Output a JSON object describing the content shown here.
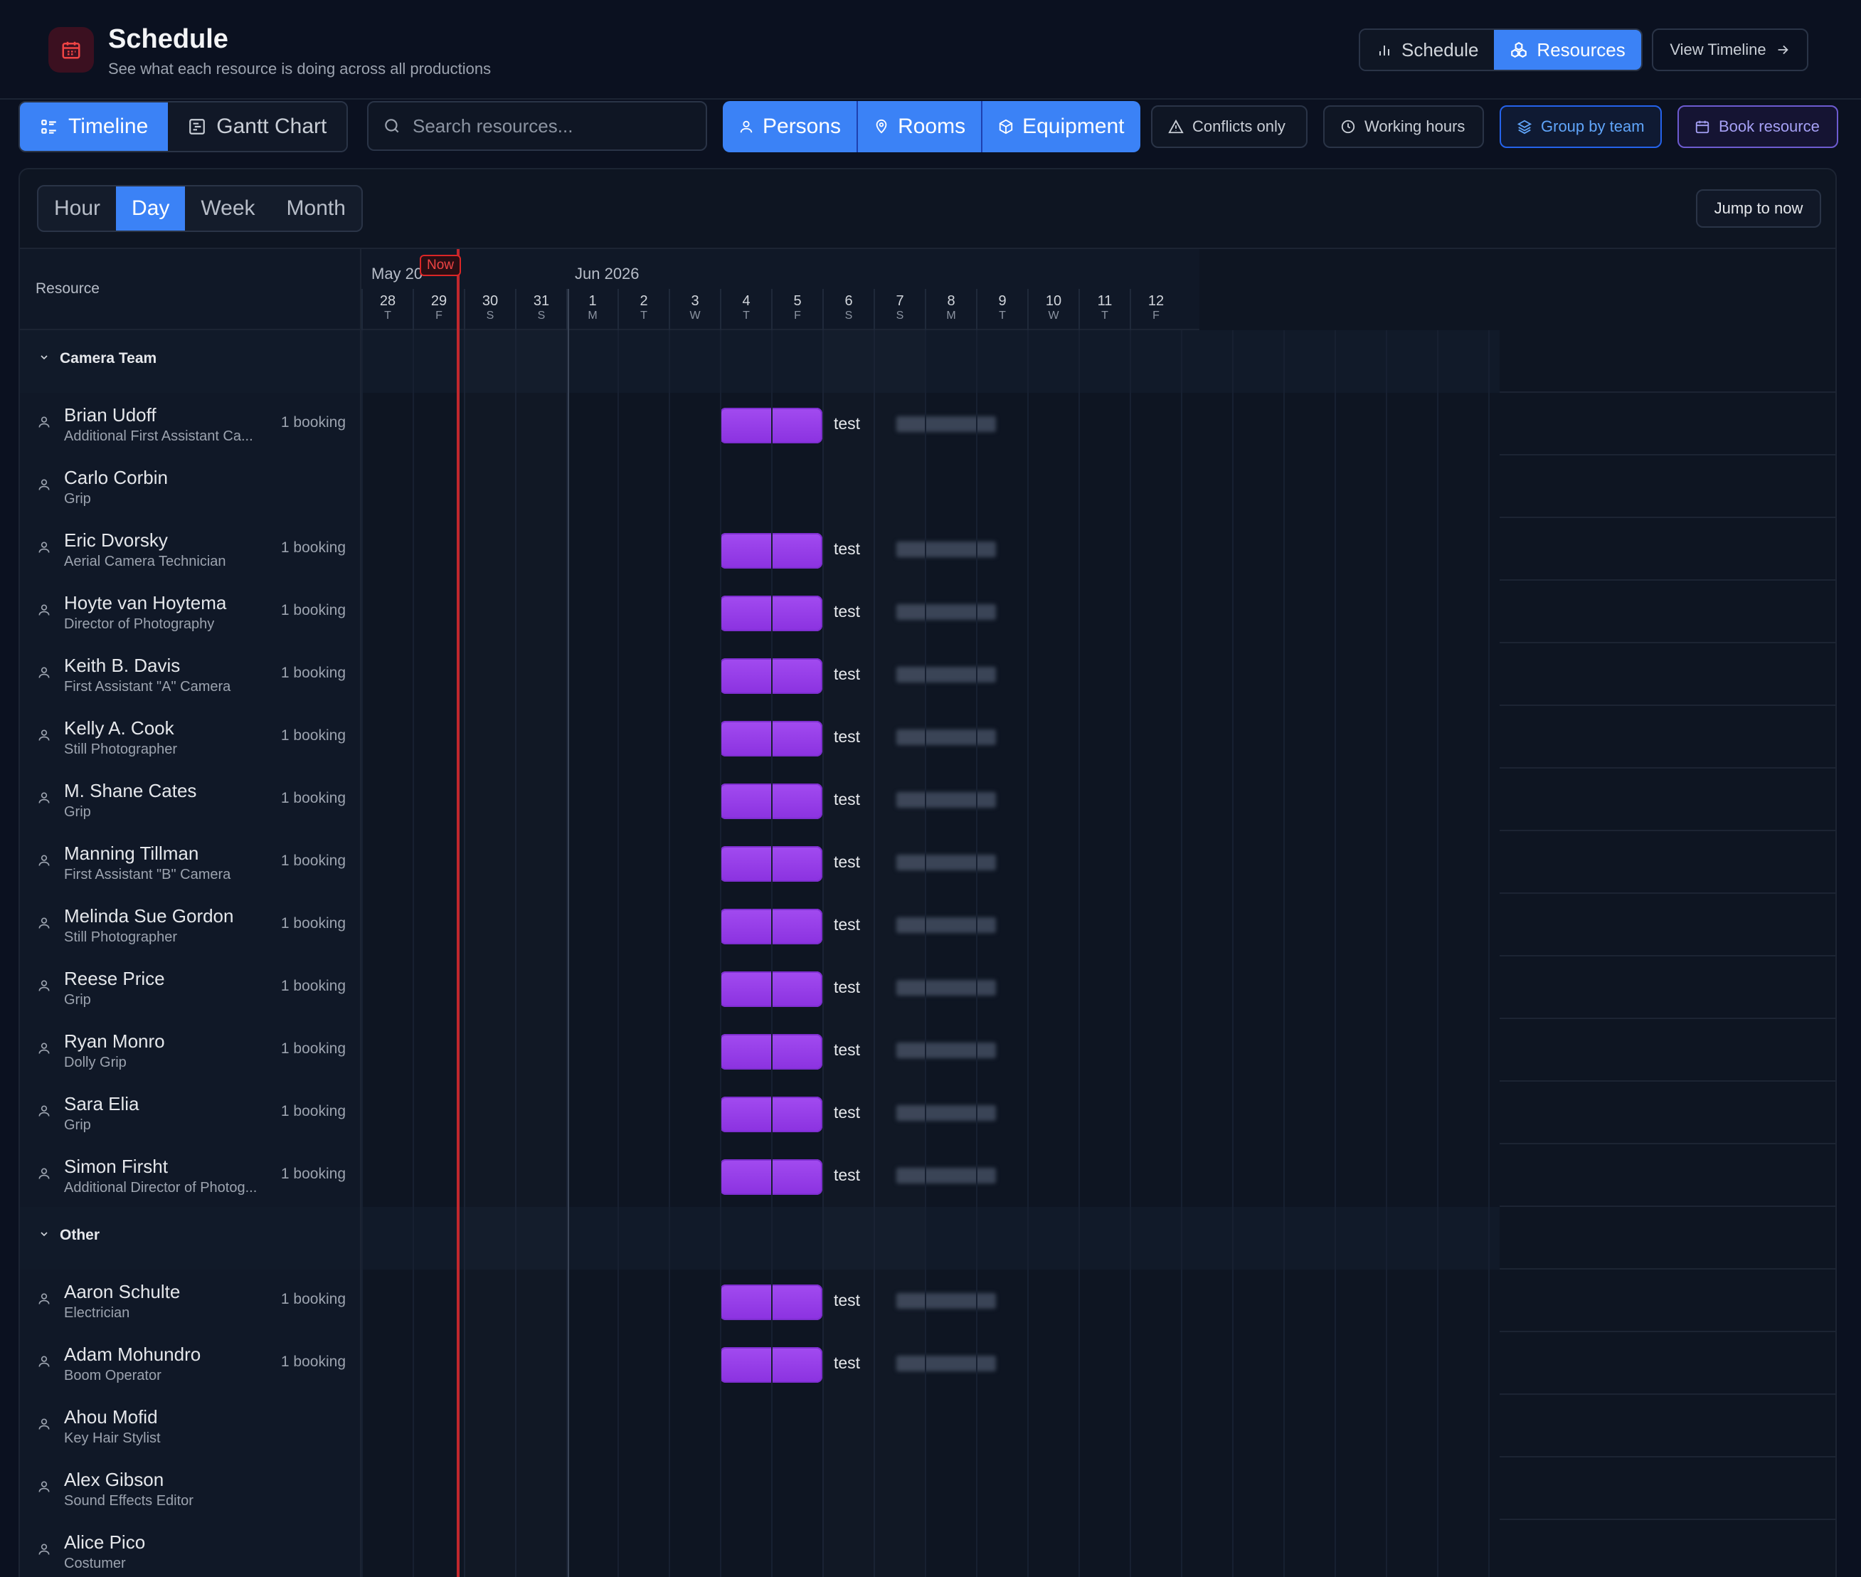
{
  "header": {
    "title": "Schedule",
    "subtitle": "See what each resource is doing across all productions",
    "mode_schedule": "Schedule",
    "mode_resources": "Resources",
    "view_timeline": "View Timeline"
  },
  "toolbar": {
    "view_timeline": "Timeline",
    "view_gantt": "Gantt Chart",
    "search_placeholder": "Search resources...",
    "type_persons": "Persons",
    "type_rooms": "Rooms",
    "type_equipment": "Equipment",
    "conflicts_only": "Conflicts only",
    "working_hours": "Working hours",
    "group_by_team": "Group by team",
    "book_resource": "Book resource"
  },
  "scale": {
    "hour": "Hour",
    "day": "Day",
    "week": "Week",
    "month": "Month",
    "selected": "Day"
  },
  "jump_to_now": "Jump to now",
  "grid": {
    "resource_header": "Resource",
    "month1": "May 20",
    "month2": "Jun 2026",
    "now_label": "Now",
    "days": [
      {
        "n": "28",
        "w": "T"
      },
      {
        "n": "29",
        "w": "F"
      },
      {
        "n": "30",
        "w": "S"
      },
      {
        "n": "31",
        "w": "S"
      },
      {
        "n": "1",
        "w": "M"
      },
      {
        "n": "2",
        "w": "T"
      },
      {
        "n": "3",
        "w": "W"
      },
      {
        "n": "4",
        "w": "T"
      },
      {
        "n": "5",
        "w": "F"
      },
      {
        "n": "6",
        "w": "S"
      },
      {
        "n": "7",
        "w": "S"
      },
      {
        "n": "8",
        "w": "M"
      },
      {
        "n": "9",
        "w": "T"
      },
      {
        "n": "10",
        "w": "W"
      },
      {
        "n": "11",
        "w": "T"
      },
      {
        "n": "12",
        "w": "F"
      }
    ]
  },
  "groups": [
    {
      "name": "Camera Team",
      "resources": [
        {
          "name": "Brian Udoff",
          "role": "Additional First Assistant Ca...",
          "count": "1 booking",
          "booking": "test"
        },
        {
          "name": "Carlo Corbin",
          "role": "Grip",
          "count": "",
          "booking": ""
        },
        {
          "name": "Eric Dvorsky",
          "role": "Aerial Camera Technician",
          "count": "1 booking",
          "booking": "test"
        },
        {
          "name": "Hoyte van Hoytema",
          "role": "Director of Photography",
          "count": "1 booking",
          "booking": "test"
        },
        {
          "name": "Keith B. Davis",
          "role": "First Assistant \"A\" Camera",
          "count": "1 booking",
          "booking": "test"
        },
        {
          "name": "Kelly A. Cook",
          "role": "Still Photographer",
          "count": "1 booking",
          "booking": "test"
        },
        {
          "name": "M. Shane Cates",
          "role": "Grip",
          "count": "1 booking",
          "booking": "test"
        },
        {
          "name": "Manning Tillman",
          "role": "First Assistant \"B\" Camera",
          "count": "1 booking",
          "booking": "test"
        },
        {
          "name": "Melinda Sue Gordon",
          "role": "Still Photographer",
          "count": "1 booking",
          "booking": "test"
        },
        {
          "name": "Reese Price",
          "role": "Grip",
          "count": "1 booking",
          "booking": "test"
        },
        {
          "name": "Ryan Monro",
          "role": "Dolly Grip",
          "count": "1 booking",
          "booking": "test"
        },
        {
          "name": "Sara Elia",
          "role": "Grip",
          "count": "1 booking",
          "booking": "test"
        },
        {
          "name": "Simon Firsht",
          "role": "Additional Director of Photog...",
          "count": "1 booking",
          "booking": "test"
        }
      ]
    },
    {
      "name": "Other",
      "resources": [
        {
          "name": "Aaron Schulte",
          "role": "Electrician",
          "count": "1 booking",
          "booking": "test"
        },
        {
          "name": "Adam Mohundro",
          "role": "Boom Operator",
          "count": "1 booking",
          "booking": "test"
        },
        {
          "name": "Ahou Mofid",
          "role": "Key Hair Stylist",
          "count": "",
          "booking": ""
        },
        {
          "name": "Alex Gibson",
          "role": "Sound Effects Editor",
          "count": "",
          "booking": ""
        },
        {
          "name": "Alice Pico",
          "role": "Costumer",
          "count": "",
          "booking": ""
        }
      ]
    }
  ],
  "colors": {
    "accent": "#3b82f6",
    "booking": "#9b42ec",
    "now": "#dc2626"
  }
}
